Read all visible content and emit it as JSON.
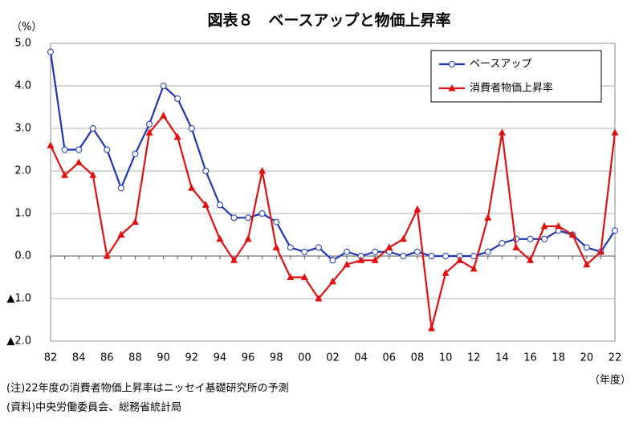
{
  "chart_data": {
    "type": "line",
    "title": "図表８　ベースアップと物価上昇率",
    "y_unit": "（%）",
    "x_unit": "（年度）",
    "notes": [
      "(注)22年度の消費者物価上昇率はニッセイ基礎研究所の予測",
      "(資料)中央労働委員会、総務省統計局"
    ],
    "categories": [
      "82",
      null,
      "84",
      null,
      "86",
      null,
      "88",
      null,
      "90",
      null,
      "92",
      null,
      "94",
      null,
      "96",
      null,
      "98",
      null,
      "00",
      null,
      "02",
      null,
      "04",
      null,
      "06",
      null,
      "08",
      null,
      "10",
      null,
      "12",
      null,
      "14",
      null,
      "16",
      null,
      "18",
      null,
      "20",
      null,
      "22"
    ],
    "series": [
      {
        "name": "ベースアップ",
        "color": "#1f35b8",
        "marker": "circle",
        "values": [
          4.8,
          2.5,
          2.5,
          3.0,
          2.5,
          1.6,
          2.4,
          3.1,
          4.0,
          3.7,
          3.0,
          2.0,
          1.2,
          0.9,
          0.9,
          1.0,
          0.8,
          0.2,
          0.1,
          0.2,
          -0.1,
          0.1,
          0.0,
          0.1,
          0.1,
          0.0,
          0.1,
          0.0,
          0.0,
          0.0,
          0.0,
          0.1,
          0.3,
          0.4,
          0.4,
          0.4,
          0.6,
          0.5,
          0.2,
          0.1,
          0.6
        ]
      },
      {
        "name": "消費者物価上昇率",
        "color": "#e01010",
        "marker": "triangle",
        "values": [
          2.6,
          1.9,
          2.2,
          1.9,
          0.0,
          0.5,
          0.8,
          2.9,
          3.3,
          2.8,
          1.6,
          1.2,
          0.4,
          -0.1,
          0.4,
          2.0,
          0.2,
          -0.5,
          -0.5,
          -1.0,
          -0.6,
          -0.2,
          -0.1,
          -0.1,
          0.2,
          0.4,
          1.1,
          -1.7,
          -0.4,
          -0.1,
          -0.3,
          0.9,
          2.9,
          0.2,
          -0.1,
          0.7,
          0.7,
          0.5,
          -0.2,
          0.1,
          2.9
        ]
      }
    ],
    "ylim": [
      -2.0,
      5.0
    ],
    "yticks": [
      {
        "value": -2.0,
        "label": "▲2.0"
      },
      {
        "value": -1.0,
        "label": "▲1.0"
      },
      {
        "value": 0.0,
        "label": "0.0"
      },
      {
        "value": 1.0,
        "label": "1.0"
      },
      {
        "value": 2.0,
        "label": "2.0"
      },
      {
        "value": 3.0,
        "label": "3.0"
      },
      {
        "value": 4.0,
        "label": "4.0"
      },
      {
        "value": 5.0,
        "label": "5.0"
      }
    ],
    "grid": true,
    "legend": "top-right"
  }
}
